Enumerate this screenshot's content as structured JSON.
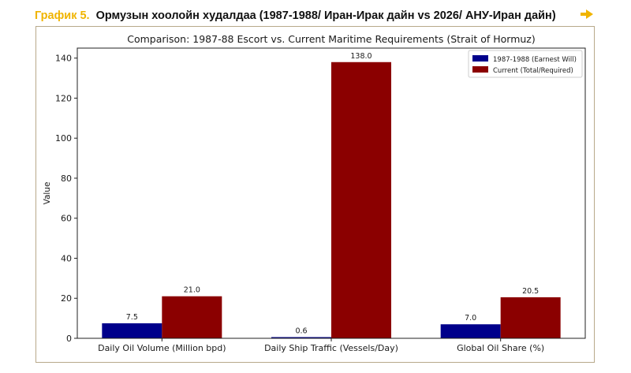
{
  "header": {
    "figure_label": "График 5.",
    "figure_title": "Ормузын хоолойн худалдаа (1987-1988/ Иран-Ирак дайн vs 2026/ АНУ-Иран дайн)",
    "accent_color": "#f0b400",
    "icon": "arrow-right-icon"
  },
  "chart_data": {
    "type": "bar",
    "title": "Comparison: 1987-88 Escort vs. Current Maritime Requirements (Strait of Hormuz)",
    "xlabel": "",
    "ylabel": "Value",
    "ylim": [
      0,
      145
    ],
    "yticks": [
      0,
      20,
      40,
      60,
      80,
      100,
      120,
      140
    ],
    "categories": [
      "Daily Oil Volume (Million bpd)",
      "Daily Ship Traffic (Vessels/Day)",
      "Global Oil Share (%)"
    ],
    "series": [
      {
        "name": "1987-1988 (Earnest Will)",
        "values": [
          7.5,
          0.6,
          7.0
        ],
        "labels": [
          "7.5",
          "0.6",
          "7.0"
        ],
        "color": "#00008b"
      },
      {
        "name": "Current (Total/Required)",
        "values": [
          21.0,
          138.0,
          20.5
        ],
        "labels": [
          "21.0",
          "138.0",
          "20.5"
        ],
        "color": "#8b0000"
      }
    ],
    "legend_position": "top-right",
    "grid": false
  }
}
